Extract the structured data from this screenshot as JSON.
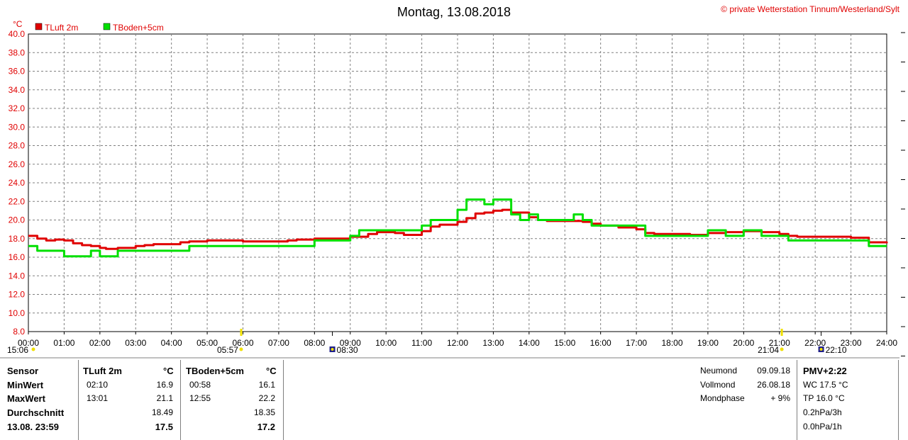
{
  "header": {
    "title": "Montag, 13.08.2018",
    "copyright": "© private Wetterstation Tinnum/Westerland/Sylt"
  },
  "chart_data": {
    "type": "line",
    "y_unit": "°C",
    "ylim": [
      8.0,
      40.0
    ],
    "yticks": [
      "8.0",
      "10.0",
      "12.0",
      "14.0",
      "16.0",
      "18.0",
      "20.0",
      "22.0",
      "24.0",
      "26.0",
      "28.0",
      "30.0",
      "32.0",
      "34.0",
      "36.0",
      "38.0",
      "40.0"
    ],
    "xlim": [
      0,
      24
    ],
    "xticks": [
      "00:00",
      "01:00",
      "02:00",
      "03:00",
      "04:00",
      "05:00",
      "06:00",
      "07:00",
      "08:00",
      "09:00",
      "10:00",
      "11:00",
      "12:00",
      "13:00",
      "14:00",
      "15:00",
      "16:00",
      "17:00",
      "18:00",
      "19:00",
      "20:00",
      "21:00",
      "22:00",
      "23:00",
      "24:00"
    ],
    "grid": true,
    "legend_position": "top-left",
    "series": [
      {
        "name": "TLuft 2m",
        "color": "#e00000",
        "x": [
          0,
          0.25,
          0.5,
          0.75,
          1,
          1.25,
          1.5,
          1.75,
          2,
          2.17,
          2.5,
          3,
          3.25,
          3.5,
          4,
          4.25,
          4.5,
          5,
          5.5,
          6,
          6.5,
          7,
          7.25,
          7.5,
          8,
          8.5,
          9,
          9.5,
          9.75,
          10,
          10.25,
          10.5,
          11,
          11.25,
          11.5,
          12,
          12.25,
          12.5,
          12.75,
          13,
          13.25,
          13.5,
          14,
          14.25,
          14.5,
          15,
          15.5,
          15.75,
          16,
          16.5,
          17,
          17.25,
          17.5,
          18,
          18.5,
          19,
          19.5,
          20,
          20.25,
          20.5,
          21,
          21.25,
          21.5,
          22,
          22.5,
          23,
          23.5,
          24
        ],
        "y": [
          18.3,
          18.0,
          17.8,
          17.9,
          17.8,
          17.5,
          17.3,
          17.2,
          17.0,
          16.9,
          17.0,
          17.2,
          17.3,
          17.4,
          17.4,
          17.6,
          17.7,
          17.8,
          17.8,
          17.7,
          17.7,
          17.7,
          17.8,
          17.9,
          18.0,
          18.0,
          18.2,
          18.5,
          18.7,
          18.7,
          18.6,
          18.4,
          18.8,
          19.3,
          19.5,
          19.8,
          20.2,
          20.7,
          20.8,
          21.0,
          21.1,
          20.8,
          20.3,
          20.0,
          19.9,
          19.9,
          19.8,
          19.6,
          19.4,
          19.2,
          19.0,
          18.6,
          18.5,
          18.5,
          18.4,
          18.6,
          18.7,
          18.8,
          18.8,
          18.7,
          18.5,
          18.3,
          18.2,
          18.2,
          18.2,
          18.1,
          17.6,
          17.5
        ]
      },
      {
        "name": "TBoden+5cm",
        "color": "#00e000",
        "x": [
          0,
          0.25,
          0.5,
          1,
          1.5,
          1.75,
          2,
          2.5,
          3,
          3.5,
          4,
          4.25,
          4.5,
          5,
          5.5,
          6,
          6.5,
          7,
          7.5,
          8,
          8.5,
          9,
          9.25,
          9.5,
          10,
          10.5,
          11,
          11.25,
          11.5,
          12,
          12.25,
          12.5,
          12.75,
          13,
          13.25,
          13.5,
          13.75,
          14,
          14.25,
          14.5,
          15,
          15.25,
          15.5,
          15.75,
          16,
          16.5,
          17,
          17.25,
          17.5,
          18,
          18.5,
          19,
          19.5,
          20,
          20.25,
          20.5,
          21,
          21.25,
          21.5,
          22,
          22.5,
          23,
          23.5,
          24
        ],
        "y": [
          17.2,
          16.7,
          16.7,
          16.1,
          16.1,
          16.7,
          16.1,
          16.7,
          16.7,
          16.7,
          16.7,
          16.7,
          17.2,
          17.2,
          17.2,
          17.2,
          17.2,
          17.2,
          17.2,
          17.8,
          17.8,
          18.3,
          18.9,
          18.9,
          18.9,
          18.9,
          19.4,
          20.0,
          20.0,
          21.1,
          22.2,
          22.2,
          21.7,
          22.2,
          22.2,
          20.6,
          20.0,
          20.6,
          20.0,
          20.0,
          20.0,
          20.6,
          20.0,
          19.4,
          19.4,
          19.4,
          19.4,
          18.3,
          18.3,
          18.3,
          18.3,
          18.9,
          18.3,
          18.9,
          18.9,
          18.3,
          18.3,
          17.8,
          17.8,
          17.8,
          17.8,
          17.8,
          17.2,
          17.2
        ]
      }
    ]
  },
  "astro": {
    "sunrise": "05:57",
    "sunset": "21:04",
    "moonrise": "08:30",
    "moonset": "22:10",
    "left_marker": "15:06"
  },
  "stats": {
    "headers": {
      "sensor": "Sensor",
      "s1": "TLuft 2m",
      "u1": "°C",
      "s2": "TBoden+5cm",
      "u2": "°C"
    },
    "rows": [
      {
        "label": "MinWert",
        "t1": "02:10",
        "v1": "16.9",
        "t2": "00:58",
        "v2": "16.1"
      },
      {
        "label": "MaxWert",
        "t1": "13:01",
        "v1": "21.1",
        "t2": "12:55",
        "v2": "22.2"
      },
      {
        "label": "Durchschnitt",
        "t1": "",
        "v1": "18.49",
        "t2": "",
        "v2": "18.35"
      },
      {
        "label": "13.08. 23:59",
        "t1": "",
        "v1": "17.5",
        "t2": "",
        "v2": "17.2"
      }
    ]
  },
  "moon": {
    "rows": [
      {
        "label": "Neumond",
        "value": "09.09.18"
      },
      {
        "label": "Vollmond",
        "value": "26.08.18"
      },
      {
        "label": "Mondphase",
        "value": "+ 9%"
      }
    ]
  },
  "pmv": {
    "title": "PMV+2:22",
    "lines": [
      "WC 17.5 °C",
      "TP 16.0 °C",
      "0.2hPa/3h",
      "0.0hPa/1h"
    ]
  }
}
